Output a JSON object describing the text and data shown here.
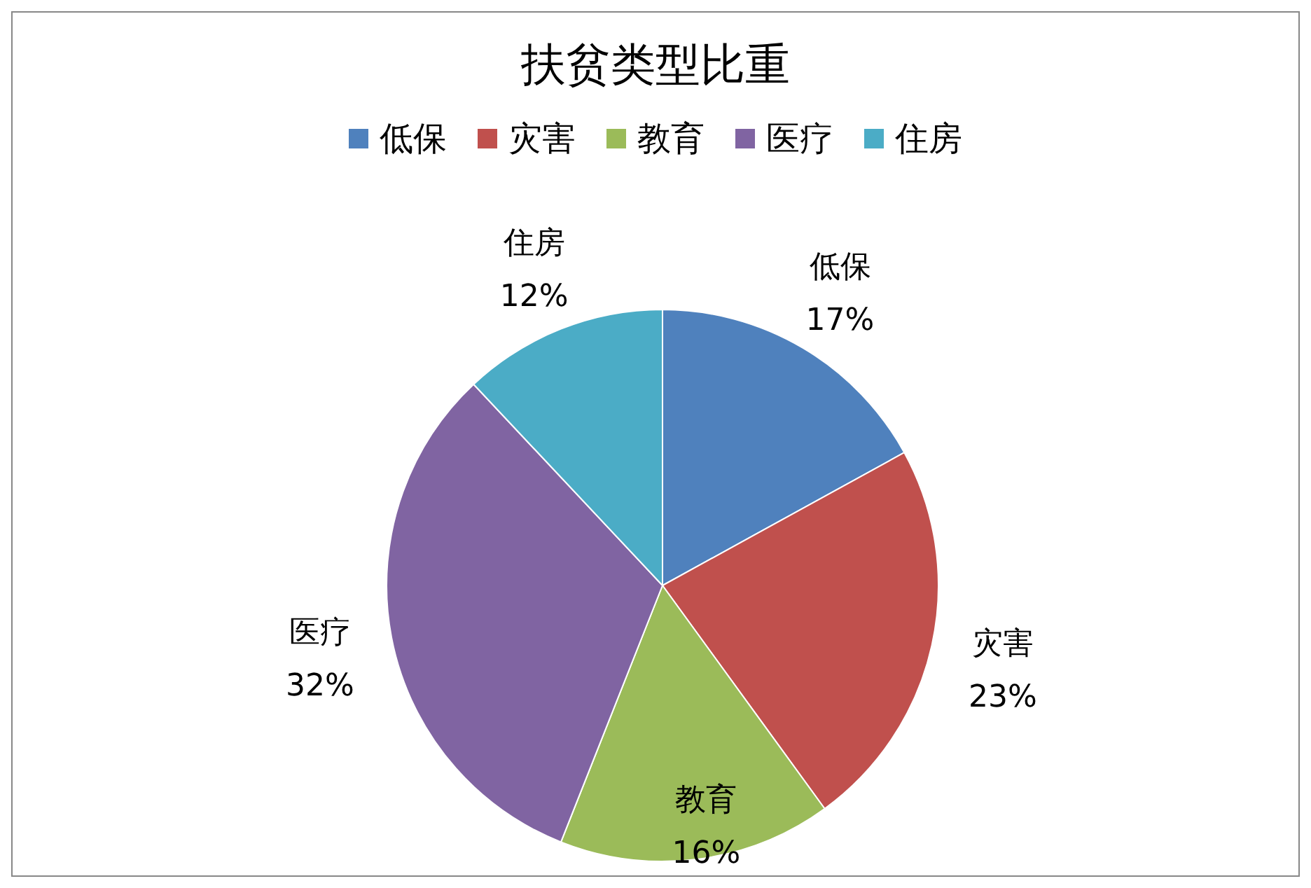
{
  "chart_data": {
    "type": "pie",
    "title": "扶贫类型比重",
    "categories": [
      "低保",
      "灾害",
      "教育",
      "医疗",
      "住房"
    ],
    "values": [
      17,
      23,
      16,
      32,
      12
    ],
    "colors": [
      "#4f81bd",
      "#c0504d",
      "#9bbb59",
      "#8064a2",
      "#4bacc6"
    ],
    "value_labels": [
      "17%",
      "23%",
      "16%",
      "32%",
      "12%"
    ],
    "legend": "top"
  }
}
